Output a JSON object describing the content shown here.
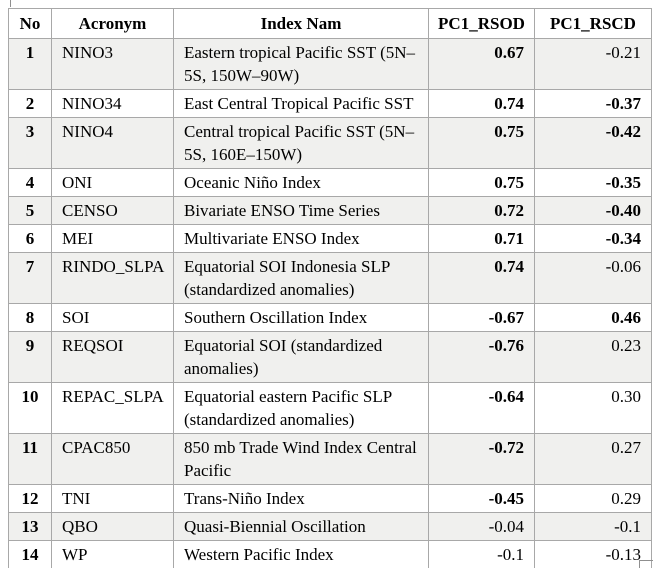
{
  "colors": {
    "border": "#a8a8a8",
    "stripe": "#f0f0ee",
    "text": "#000000",
    "background": "#ffffff"
  },
  "table": {
    "columns": [
      {
        "label": "No"
      },
      {
        "label": "Acronym"
      },
      {
        "label": "Index Nam"
      },
      {
        "label": "PC1_RSOD"
      },
      {
        "label": "PC1_RSCD"
      }
    ],
    "rows": [
      {
        "no": "1",
        "acronym": "NINO3",
        "index_name": "Eastern tropical Pacific SST (5N–5S, 150W–90W)",
        "pc1_rsod": {
          "value": "0.67",
          "bold": true
        },
        "pc1_rscd": {
          "value": "-0.21",
          "bold": false
        }
      },
      {
        "no": "2",
        "acronym": "NINO34",
        "index_name": "East Central Tropical Pacific SST",
        "pc1_rsod": {
          "value": "0.74",
          "bold": true
        },
        "pc1_rscd": {
          "value": "-0.37",
          "bold": true
        }
      },
      {
        "no": "3",
        "acronym": "NINO4",
        "index_name": "Central tropical Pacific SST (5N–5S, 160E–150W)",
        "pc1_rsod": {
          "value": "0.75",
          "bold": true
        },
        "pc1_rscd": {
          "value": "-0.42",
          "bold": true
        }
      },
      {
        "no": "4",
        "acronym": "ONI",
        "index_name": "Oceanic Niño Index",
        "pc1_rsod": {
          "value": "0.75",
          "bold": true
        },
        "pc1_rscd": {
          "value": "-0.35",
          "bold": true
        }
      },
      {
        "no": "5",
        "acronym": "CENSO",
        "index_name": "Bivariate ENSO Time Series",
        "pc1_rsod": {
          "value": "0.72",
          "bold": true
        },
        "pc1_rscd": {
          "value": "-0.40",
          "bold": true
        }
      },
      {
        "no": "6",
        "acronym": "MEI",
        "index_name": "Multivariate ENSO Index",
        "pc1_rsod": {
          "value": "0.71",
          "bold": true
        },
        "pc1_rscd": {
          "value": "-0.34",
          "bold": true
        }
      },
      {
        "no": "7",
        "acronym": "RINDO_SLPA",
        "index_name": "Equatorial SOI Indonesia SLP (standardized anomalies)",
        "pc1_rsod": {
          "value": "0.74",
          "bold": true
        },
        "pc1_rscd": {
          "value": "-0.06",
          "bold": false
        }
      },
      {
        "no": "8",
        "acronym": "SOI",
        "index_name": "Southern Oscillation Index",
        "pc1_rsod": {
          "value": "-0.67",
          "bold": true
        },
        "pc1_rscd": {
          "value": "0.46",
          "bold": true
        }
      },
      {
        "no": "9",
        "acronym": "REQSOI",
        "index_name": "Equatorial SOI (standardized anomalies)",
        "pc1_rsod": {
          "value": "-0.76",
          "bold": true
        },
        "pc1_rscd": {
          "value": "0.23",
          "bold": false
        }
      },
      {
        "no": "10",
        "acronym": "REPAC_SLPA",
        "index_name": "Equatorial eastern Pacific SLP (standardized anomalies)",
        "pc1_rsod": {
          "value": "-0.64",
          "bold": true
        },
        "pc1_rscd": {
          "value": "0.30",
          "bold": false
        }
      },
      {
        "no": "11",
        "acronym": "CPAC850",
        "index_name": "850 mb Trade Wind Index Central Pacific",
        "pc1_rsod": {
          "value": "-0.72",
          "bold": true
        },
        "pc1_rscd": {
          "value": "0.27",
          "bold": false
        }
      },
      {
        "no": "12",
        "acronym": "TNI",
        "index_name": "Trans-Niño Index",
        "pc1_rsod": {
          "value": "-0.45",
          "bold": true
        },
        "pc1_rscd": {
          "value": "0.29",
          "bold": false
        }
      },
      {
        "no": "13",
        "acronym": "QBO",
        "index_name": "Quasi-Biennial Oscillation",
        "pc1_rsod": {
          "value": "-0.04",
          "bold": false
        },
        "pc1_rscd": {
          "value": "-0.1",
          "bold": false
        }
      },
      {
        "no": "14",
        "acronym": "WP",
        "index_name": "Western Pacific Index",
        "pc1_rsod": {
          "value": "-0.1",
          "bold": false
        },
        "pc1_rscd": {
          "value": "-0.13",
          "bold": false
        }
      }
    ]
  }
}
